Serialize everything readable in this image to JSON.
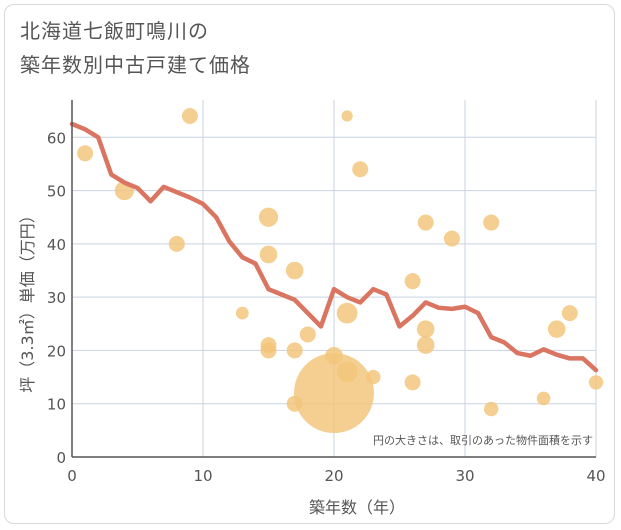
{
  "chart_title": [
    "北海道七飯町鳴川の",
    "築年数別中古戸建て価格"
  ],
  "colors": {
    "line": "#d97560",
    "bubble": "#f3c57a",
    "grid": "#c8d3e0",
    "axis": "#555555"
  },
  "chart_data": {
    "type": "scatter",
    "xlabel": "築年数（年）",
    "ylabel": "坪（3.3㎡）単価（万円）",
    "xlim": [
      0,
      40
    ],
    "ylim": [
      0,
      67
    ],
    "xticks": [
      0,
      10,
      20,
      30,
      40
    ],
    "yticks": [
      0,
      10,
      20,
      30,
      40,
      50,
      60
    ],
    "grid": true,
    "annotation": "円の大きさは、取引のあった物件面積を示す",
    "series": [
      {
        "kind": "bubble",
        "points": [
          {
            "x": 1,
            "y": 57,
            "size": 1.0
          },
          {
            "x": 4,
            "y": 50,
            "size": 1.2
          },
          {
            "x": 8,
            "y": 40,
            "size": 1.0
          },
          {
            "x": 9,
            "y": 64,
            "size": 1.0
          },
          {
            "x": 13,
            "y": 27,
            "size": 0.8
          },
          {
            "x": 15,
            "y": 45,
            "size": 1.2
          },
          {
            "x": 15,
            "y": 38,
            "size": 1.1
          },
          {
            "x": 15,
            "y": 21,
            "size": 1.0
          },
          {
            "x": 15,
            "y": 20,
            "size": 1.0
          },
          {
            "x": 17,
            "y": 35,
            "size": 1.1
          },
          {
            "x": 17,
            "y": 20,
            "size": 1.0
          },
          {
            "x": 17,
            "y": 10,
            "size": 1.0
          },
          {
            "x": 18,
            "y": 23,
            "size": 1.0
          },
          {
            "x": 20,
            "y": 12,
            "size": 5.0
          },
          {
            "x": 20,
            "y": 19,
            "size": 1.1
          },
          {
            "x": 21,
            "y": 64,
            "size": 0.7
          },
          {
            "x": 21,
            "y": 27,
            "size": 1.3
          },
          {
            "x": 21,
            "y": 16,
            "size": 1.3
          },
          {
            "x": 22,
            "y": 54,
            "size": 1.0
          },
          {
            "x": 23,
            "y": 15,
            "size": 0.9
          },
          {
            "x": 26,
            "y": 33,
            "size": 1.0
          },
          {
            "x": 26,
            "y": 14,
            "size": 1.0
          },
          {
            "x": 27,
            "y": 44,
            "size": 1.0
          },
          {
            "x": 27,
            "y": 24,
            "size": 1.1
          },
          {
            "x": 27,
            "y": 21,
            "size": 1.1
          },
          {
            "x": 29,
            "y": 41,
            "size": 1.0
          },
          {
            "x": 32,
            "y": 44,
            "size": 1.0
          },
          {
            "x": 32,
            "y": 9,
            "size": 0.9
          },
          {
            "x": 36,
            "y": 11,
            "size": 0.85
          },
          {
            "x": 37,
            "y": 24,
            "size": 1.1
          },
          {
            "x": 38,
            "y": 27,
            "size": 1.0
          },
          {
            "x": 40,
            "y": 14,
            "size": 0.9
          }
        ]
      },
      {
        "kind": "line",
        "x": [
          0,
          1,
          2,
          3,
          4,
          5,
          6,
          7,
          8,
          9,
          10,
          11,
          12,
          13,
          14,
          15,
          16,
          17,
          18,
          19,
          20,
          21,
          22,
          23,
          24,
          25,
          26,
          27,
          28,
          29,
          30,
          31,
          32,
          33,
          34,
          35,
          36,
          37,
          38,
          39,
          40
        ],
        "y": [
          62.5,
          61.5,
          60,
          53,
          51.5,
          50.5,
          48,
          50.7,
          49.7,
          48.7,
          47.5,
          45,
          40.5,
          37.5,
          36.3,
          31.5,
          30.5,
          29.5,
          27,
          24.5,
          31.5,
          30,
          29,
          31.5,
          30.5,
          24.5,
          26.5,
          29,
          28,
          27.8,
          28.2,
          27,
          22.5,
          21.5,
          19.5,
          19,
          20.2,
          19.2,
          18.5,
          18.5,
          16.3
        ]
      }
    ]
  }
}
